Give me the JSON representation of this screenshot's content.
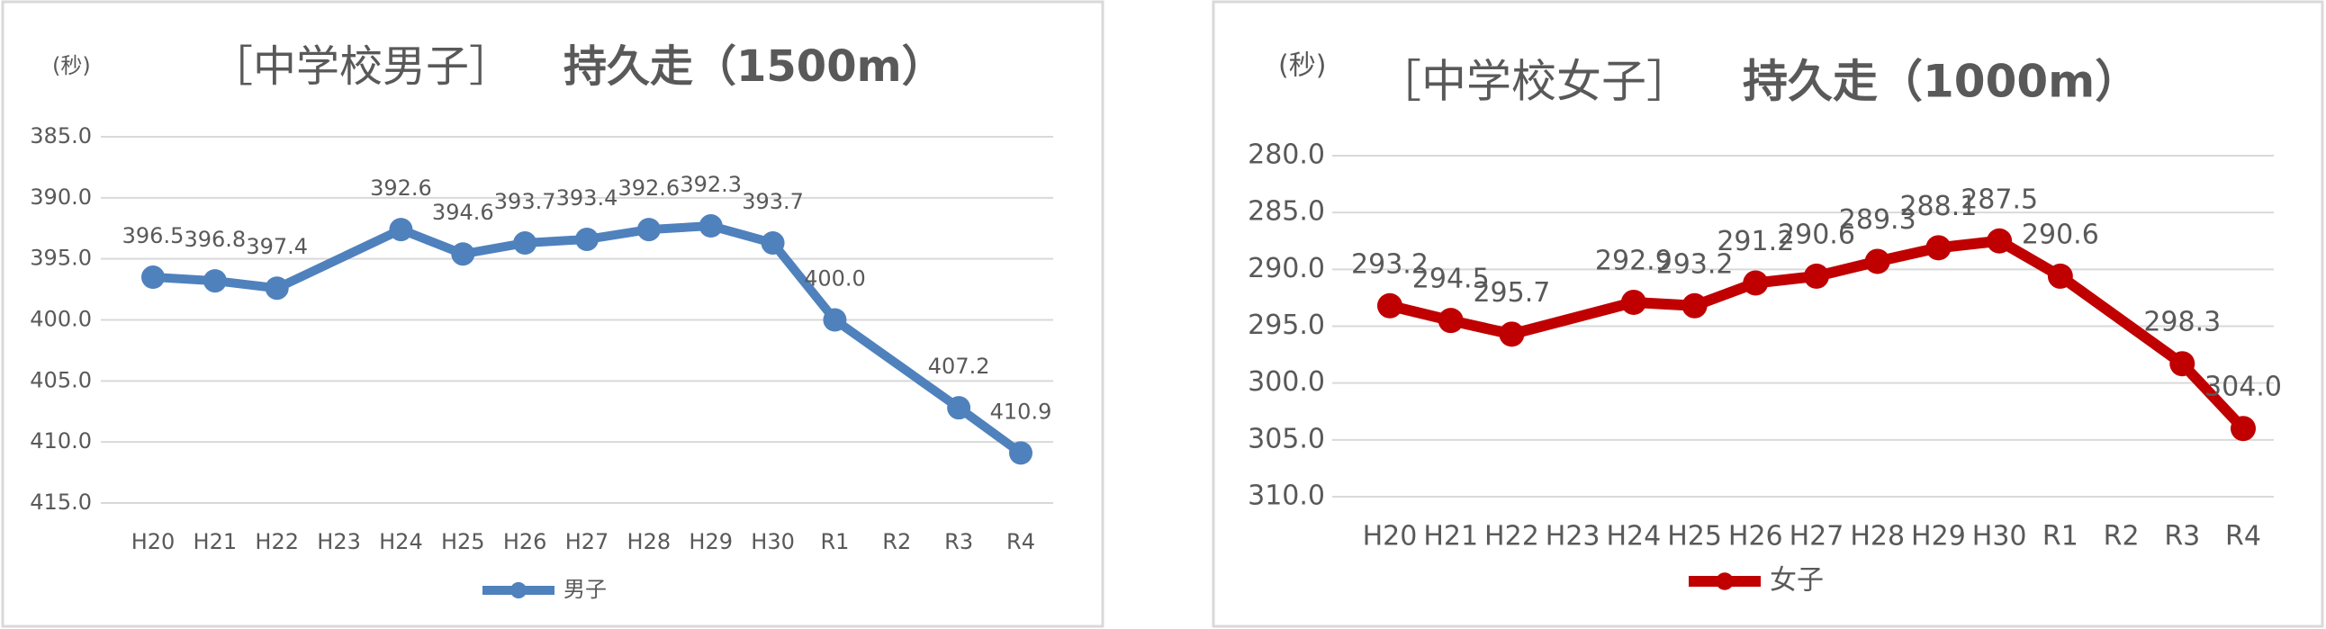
{
  "chart_data": [
    {
      "type": "line",
      "title": "［中学校男子］",
      "subtitle": "持久走（1500m）",
      "y_axis_label": "(秒)",
      "categories": [
        "H20",
        "H21",
        "H22",
        "H23",
        "H24",
        "H25",
        "H26",
        "H27",
        "H28",
        "H29",
        "H30",
        "R1",
        "R2",
        "R3",
        "R4"
      ],
      "series": [
        {
          "name": "男子",
          "color": "#4f81bd",
          "values": [
            396.5,
            396.8,
            397.4,
            null,
            392.6,
            394.6,
            393.7,
            393.4,
            392.6,
            392.3,
            393.7,
            400,
            null,
            407.2,
            410.9
          ],
          "value_labels": [
            "396.5",
            "396.8",
            "397.4",
            null,
            "392.6",
            "394.6",
            "393.7",
            "393.4",
            "392.6",
            "392.3",
            "393.7",
            "400.0",
            null,
            "407.2",
            "410.9"
          ]
        }
      ],
      "ylim": [
        385,
        415
      ],
      "y_reversed": true,
      "yticks": [
        {
          "value": 385,
          "label": "385.0"
        },
        {
          "value": 390,
          "label": "390.0"
        },
        {
          "value": 395,
          "label": "395.0"
        },
        {
          "value": 400,
          "label": "400.0"
        },
        {
          "value": 405,
          "label": "405.0"
        },
        {
          "value": 410,
          "label": "410.0"
        },
        {
          "value": 415,
          "label": "415.0"
        }
      ],
      "grid": true,
      "legend": "bottom"
    },
    {
      "type": "line",
      "title": "［中学校女子］",
      "subtitle": "持久走（1000m）",
      "y_axis_label": "(秒)",
      "categories": [
        "H20",
        "H21",
        "H22",
        "H23",
        "H24",
        "H25",
        "H26",
        "H27",
        "H28",
        "H29",
        "H30",
        "R1",
        "R2",
        "R3",
        "R4"
      ],
      "series": [
        {
          "name": "女子",
          "color": "#c00000",
          "values": [
            293.2,
            294.5,
            295.7,
            null,
            292.9,
            293.2,
            291.2,
            290.6,
            289.3,
            288.1,
            287.5,
            290.6,
            null,
            298.3,
            304
          ],
          "value_labels": [
            "293.2",
            "294.5",
            "295.7",
            null,
            "292.9",
            "293.2",
            "291.2",
            "290.6",
            "289.3",
            "288.1",
            "287.5",
            "290.6",
            null,
            "298.3",
            "304.0"
          ]
        }
      ],
      "ylim": [
        280,
        310
      ],
      "y_reversed": true,
      "yticks": [
        {
          "value": 280,
          "label": "280.0"
        },
        {
          "value": 285,
          "label": "285.0"
        },
        {
          "value": 290,
          "label": "290.0"
        },
        {
          "value": 295,
          "label": "295.0"
        },
        {
          "value": 300,
          "label": "300.0"
        },
        {
          "value": 305,
          "label": "305.0"
        },
        {
          "value": 310,
          "label": "310.0"
        }
      ],
      "grid": true,
      "legend": "bottom"
    }
  ]
}
